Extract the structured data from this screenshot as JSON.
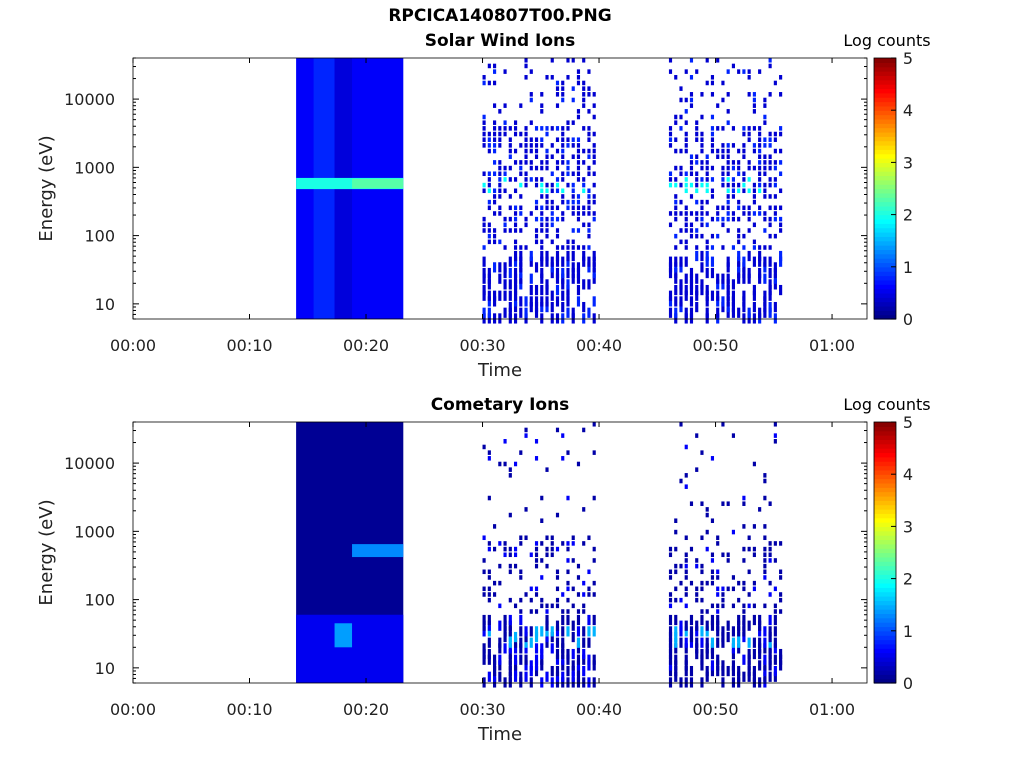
{
  "figure": {
    "title": "RPCICA140807T00.PNG"
  },
  "chart_data": [
    {
      "type": "heatmap",
      "title": "Solar Wind Ions",
      "xlabel": "Time",
      "ylabel": "Energy (eV)",
      "x_ticks": [
        "00:00",
        "00:10",
        "00:20",
        "00:30",
        "00:40",
        "00:50",
        "01:00"
      ],
      "x_range_min": [
        0,
        63
      ],
      "y_scale": "log",
      "y_ticks": [
        "10",
        "100",
        "1000",
        "10000"
      ],
      "y_range_eV": [
        6,
        40000
      ],
      "colorbar": {
        "label": "Log counts",
        "ticks": [
          "0",
          "1",
          "2",
          "3",
          "4",
          "5"
        ],
        "range": [
          0,
          5
        ],
        "colormap": "jet"
      },
      "blocks": [
        {
          "time_min": [
            14,
            23.2
          ],
          "e_eV": [
            6,
            40000
          ],
          "log_counts": 0.6
        },
        {
          "time_min": [
            15.5,
            17.3
          ],
          "e_eV": [
            6,
            40000
          ],
          "log_counts": 0.8
        },
        {
          "time_min": [
            17.3,
            18.8
          ],
          "e_eV": [
            6,
            40000
          ],
          "log_counts": 0.45
        },
        {
          "time_min": [
            14,
            23.2
          ],
          "e_eV": [
            480,
            700
          ],
          "log_counts": 2.0
        },
        {
          "time_min": [
            18.8,
            23.2
          ],
          "e_eV": [
            490,
            680
          ],
          "log_counts": 2.3
        }
      ],
      "sparse_bursts": [
        {
          "time_min": [
            30.0,
            39.5
          ],
          "log_counts_typical": 0.4,
          "peak_e_eV": 550,
          "peak_log_counts": 1.9
        },
        {
          "time_min": [
            46.0,
            55.5
          ],
          "log_counts_typical": 0.4,
          "peak_e_eV": 550,
          "peak_log_counts": 1.9
        }
      ]
    },
    {
      "type": "heatmap",
      "title": "Cometary Ions",
      "xlabel": "Time",
      "ylabel": "Energy (eV)",
      "x_ticks": [
        "00:00",
        "00:10",
        "00:20",
        "00:30",
        "00:40",
        "00:50",
        "01:00"
      ],
      "x_range_min": [
        0,
        63
      ],
      "y_scale": "log",
      "y_ticks": [
        "10",
        "100",
        "1000",
        "10000"
      ],
      "y_range_eV": [
        6,
        40000
      ],
      "colorbar": {
        "label": "Log counts",
        "ticks": [
          "0",
          "1",
          "2",
          "3",
          "4",
          "5"
        ],
        "range": [
          0,
          5
        ],
        "colormap": "jet"
      },
      "blocks": [
        {
          "time_min": [
            14,
            23.2
          ],
          "e_eV": [
            6,
            40000
          ],
          "log_counts": 0.1
        },
        {
          "time_min": [
            14,
            23.2
          ],
          "e_eV": [
            6,
            60
          ],
          "log_counts": 0.55
        },
        {
          "time_min": [
            17.3,
            18.8
          ],
          "e_eV": [
            20,
            45
          ],
          "log_counts": 1.4
        },
        {
          "time_min": [
            18.8,
            23.2
          ],
          "e_eV": [
            420,
            650
          ],
          "log_counts": 1.3
        }
      ],
      "sparse_bursts": [
        {
          "time_min": [
            30.0,
            39.5
          ],
          "log_counts_typical": 0.2,
          "peak_e_eV": 30,
          "peak_log_counts": 1.5
        },
        {
          "time_min": [
            46.0,
            55.5
          ],
          "log_counts_typical": 0.2,
          "peak_e_eV": 30,
          "peak_log_counts": 1.5
        }
      ]
    }
  ]
}
